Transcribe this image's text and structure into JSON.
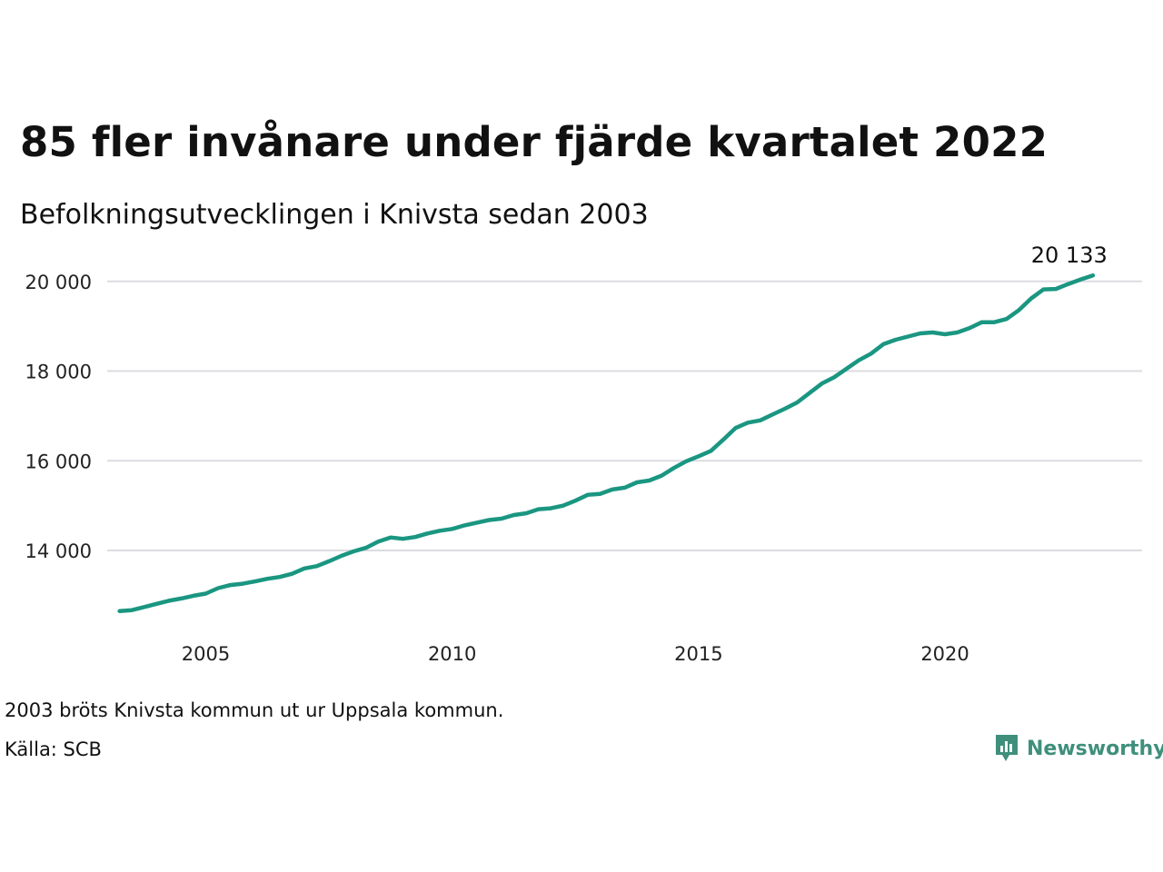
{
  "header": {
    "title": "85 fler invånare under fjärde kvartalet 2022",
    "subtitle": "Befolkningsutvecklingen i Knivsta sedan 2003"
  },
  "footer": {
    "note": "2003 bröts Knivsta kommun ut ur Uppsala kommun.",
    "source": "Källa: SCB",
    "brand": "Newsworthy"
  },
  "colors": {
    "line": "#1a9681",
    "grid": "#dcdce2",
    "brand": "#3f8f7c"
  },
  "chart_data": {
    "type": "line",
    "ylim": [
      12300,
      20400
    ],
    "xlim": [
      2003.0,
      2024.0
    ],
    "y_ticks": [
      {
        "value": 14000,
        "label": "14 000"
      },
      {
        "value": 16000,
        "label": "16 000"
      },
      {
        "value": 18000,
        "label": "18 000"
      },
      {
        "value": 20000,
        "label": "20 000"
      }
    ],
    "x_ticks": [
      {
        "value": 2005,
        "label": "2005"
      },
      {
        "value": 2010,
        "label": "2010"
      },
      {
        "value": 2015,
        "label": "2015"
      },
      {
        "value": 2020,
        "label": "2020"
      }
    ],
    "grid": true,
    "end_label": "20 133",
    "series": [
      {
        "x": [
          2003.25,
          2003.5,
          2003.75,
          2004.0,
          2004.25,
          2004.5,
          2004.75,
          2005.0,
          2005.25,
          2005.5,
          2005.75,
          2006.0,
          2006.25,
          2006.5,
          2006.75,
          2007.0,
          2007.25,
          2007.5,
          2007.75,
          2008.0,
          2008.25,
          2008.5,
          2008.75,
          2009.0,
          2009.25,
          2009.5,
          2009.75,
          2010.0,
          2010.25,
          2010.5,
          2010.75,
          2011.0,
          2011.25,
          2011.5,
          2011.75,
          2012.0,
          2012.25,
          2012.5,
          2012.75,
          2013.0,
          2013.25,
          2013.5,
          2013.75,
          2014.0,
          2014.25,
          2014.5,
          2014.75,
          2015.0,
          2015.25,
          2015.5,
          2015.75,
          2016.0,
          2016.25,
          2016.5,
          2016.75,
          2017.0,
          2017.25,
          2017.5,
          2017.75,
          2018.0,
          2018.25,
          2018.5,
          2018.75,
          2019.0,
          2019.25,
          2019.5,
          2019.75,
          2020.0,
          2020.25,
          2020.5,
          2020.75,
          2021.0,
          2021.25,
          2021.5,
          2021.75,
          2022.0,
          2022.25,
          2022.5,
          2022.75,
          2023.0
        ],
        "values": [
          12650,
          12670,
          12740,
          12810,
          12880,
          12930,
          12990,
          13040,
          13160,
          13230,
          13260,
          13310,
          13370,
          13410,
          13480,
          13600,
          13650,
          13760,
          13880,
          13980,
          14060,
          14200,
          14290,
          14260,
          14300,
          14380,
          14440,
          14480,
          14560,
          14620,
          14680,
          14710,
          14790,
          14830,
          14920,
          14940,
          15000,
          15110,
          15240,
          15260,
          15360,
          15400,
          15520,
          15560,
          15670,
          15840,
          15990,
          16100,
          16220,
          16470,
          16730,
          16850,
          16900,
          17030,
          17160,
          17300,
          17510,
          17720,
          17860,
          18050,
          18240,
          18390,
          18600,
          18700,
          18770,
          18840,
          18860,
          18820,
          18860,
          18960,
          19090,
          19090,
          19160,
          19360,
          19620,
          19820,
          19830,
          19940,
          20040,
          20133
        ]
      }
    ]
  }
}
